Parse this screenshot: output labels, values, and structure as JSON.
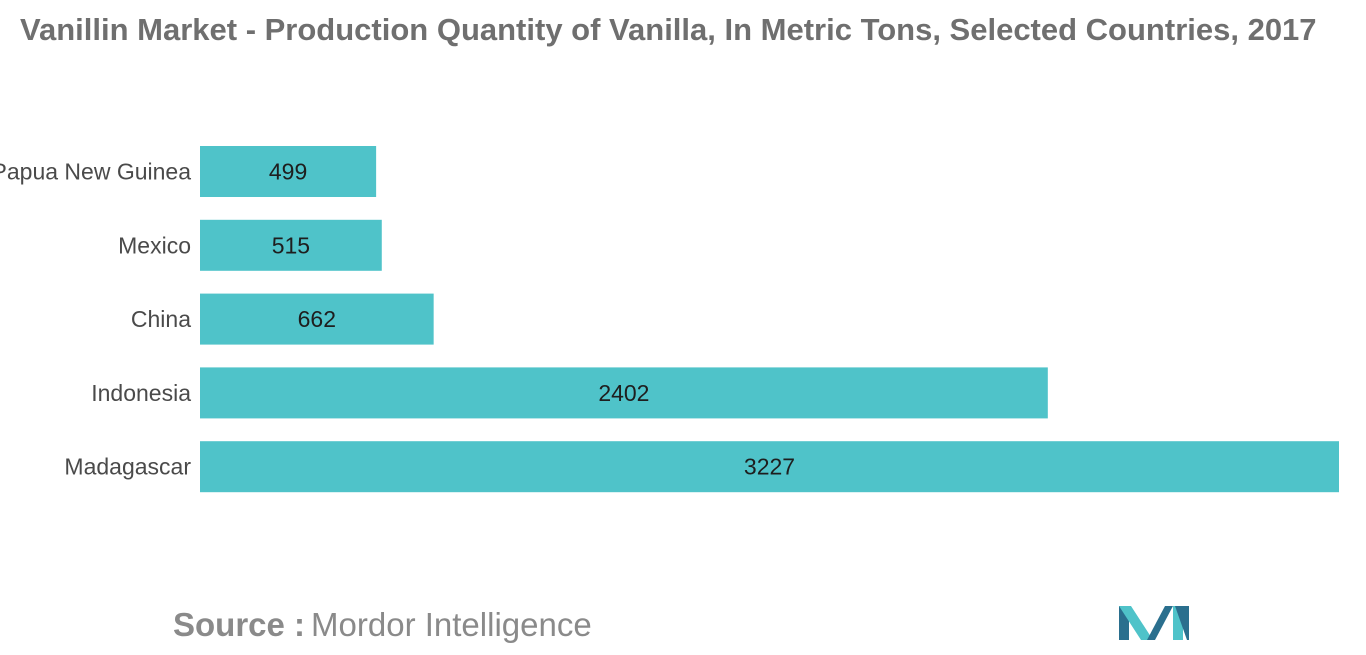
{
  "chart_data": {
    "type": "bar",
    "orientation": "horizontal",
    "title": "Vanillin Market - Production Quantity of Vanilla, In Metric Tons, Selected Countries, 2017",
    "categories": [
      "Papua New Guinea",
      "Mexico",
      "China",
      "Indonesia",
      "Madagascar"
    ],
    "values": [
      499,
      515,
      662,
      2402,
      3227
    ],
    "xlabel": "",
    "ylabel": "",
    "xlim": [
      0,
      3227
    ],
    "grid": false,
    "legend": "none",
    "data_labels": true,
    "bar_color": "#4fc3c9"
  },
  "source": {
    "label": "Source :",
    "value": "Mordor Intelligence"
  },
  "colors": {
    "title": "#6f6f6f",
    "logo_dark": "#2a6f8e",
    "logo_light": "#4fc3c9"
  }
}
